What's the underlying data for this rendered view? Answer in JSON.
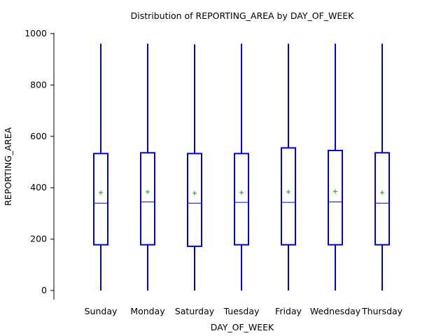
{
  "chart_data": {
    "type": "boxplot",
    "title": "Distribution of REPORTING_AREA by DAY_OF_WEEK",
    "xlabel": "DAY_OF_WEEK",
    "ylabel": "REPORTING_AREA",
    "ylim": [
      0,
      1000
    ],
    "yticks": [
      0,
      200,
      400,
      600,
      800,
      1000
    ],
    "grid": false,
    "categories": [
      "Sunday",
      "Monday",
      "Saturday",
      "Tuesday",
      "Friday",
      "Wednesday",
      "Thursday"
    ],
    "boxes": [
      {
        "category": "Sunday",
        "min": 0,
        "q1": 178,
        "median": 340,
        "q3": 533,
        "max": 961,
        "mean": 381
      },
      {
        "category": "Monday",
        "min": 0,
        "q1": 178,
        "median": 345,
        "q3": 536,
        "max": 961,
        "mean": 384
      },
      {
        "category": "Saturday",
        "min": 0,
        "q1": 172,
        "median": 340,
        "q3": 533,
        "max": 958,
        "mean": 379
      },
      {
        "category": "Tuesday",
        "min": 0,
        "q1": 178,
        "median": 343,
        "q3": 533,
        "max": 961,
        "mean": 381
      },
      {
        "category": "Friday",
        "min": 0,
        "q1": 178,
        "median": 343,
        "q3": 555,
        "max": 961,
        "mean": 384
      },
      {
        "category": "Wednesday",
        "min": 0,
        "q1": 178,
        "median": 345,
        "q3": 545,
        "max": 961,
        "mean": 386
      },
      {
        "category": "Thursday",
        "min": 0,
        "q1": 178,
        "median": 340,
        "q3": 536,
        "max": 961,
        "mean": 381
      }
    ],
    "colors": {
      "box": "#0000dd",
      "mean_marker": "#00aa00"
    }
  }
}
